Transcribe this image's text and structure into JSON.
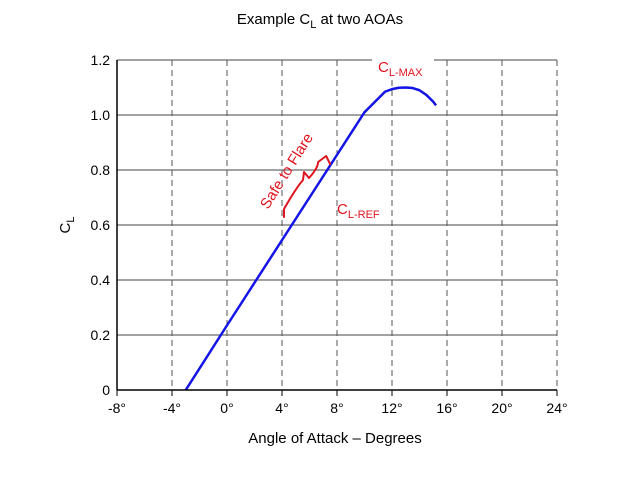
{
  "chart_data": {
    "type": "line",
    "title": {
      "main": "Example C",
      "sub": "L",
      "rest": " at two AOAs"
    },
    "xlabel": "Angle of Attack – Degrees",
    "ylabel": {
      "main": "C",
      "sub": "L"
    },
    "xlim": [
      -8,
      24
    ],
    "ylim": [
      0,
      1.2
    ],
    "xticks": [
      -8,
      -4,
      0,
      4,
      8,
      12,
      16,
      20,
      24
    ],
    "xtick_labels": [
      "-8°",
      "-4°",
      "0°",
      "4°",
      "8°",
      "12°",
      "16°",
      "20°",
      "24°"
    ],
    "yticks": [
      0,
      0.2,
      0.4,
      0.6,
      0.8,
      1.0,
      1.2
    ],
    "ytick_labels": [
      "0",
      "0.2",
      "0.4",
      "0.6",
      "0.8",
      "1.0",
      "1.2"
    ],
    "grid": true,
    "grid_style": "dashed vertical, solid horizontal",
    "series": [
      {
        "color": "#1414e6",
        "x": [
          -3.0,
          0.0,
          2.0,
          4.0,
          6.0,
          8.0,
          10.0,
          11.5,
          12.0,
          12.5,
          13.0,
          13.5,
          14.0,
          14.5,
          15.0,
          15.2
        ],
        "y": [
          0.0,
          0.235,
          0.39,
          0.545,
          0.7,
          0.855,
          1.01,
          1.085,
          1.094,
          1.099,
          1.1,
          1.098,
          1.09,
          1.073,
          1.048,
          1.035
        ]
      }
    ],
    "annotations": {
      "clmax": {
        "main": "C",
        "sub": "L-MAX",
        "color": "#e0141e"
      },
      "clref": {
        "main": "C",
        "sub": "L-REF",
        "color": "#e0141e"
      },
      "safe_to_flare": {
        "text": "Safe to Flare",
        "color": "#e0141e",
        "x_range": [
          4,
          7.5
        ]
      }
    }
  }
}
